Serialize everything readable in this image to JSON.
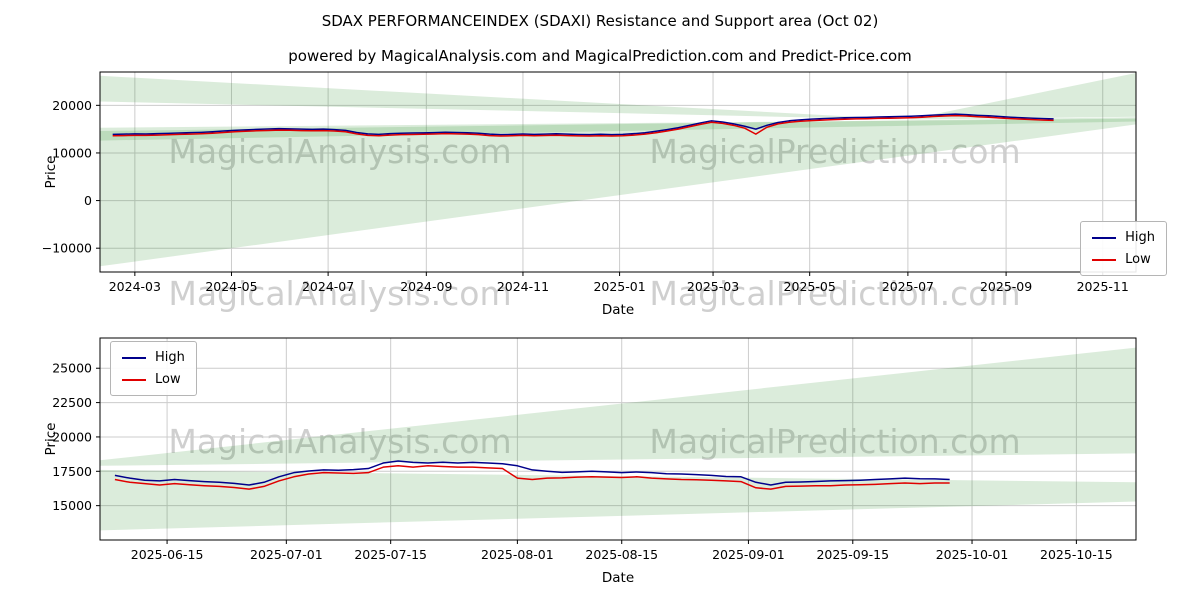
{
  "figure": {
    "title": "SDAX PERFORMANCEINDEX (SDAXI) Resistance and Support area (Oct 02)",
    "subtitle": "powered by MagicalAnalysis.com and MagicalPrediction.com and Predict-Price.com"
  },
  "watermark": {
    "left": "MagicalAnalysis.com",
    "right": "MagicalPrediction.com"
  },
  "colors": {
    "high": "#00008b",
    "low": "#e00000",
    "band": "rgba(34,139,34,0.16)",
    "grid": "#cccccc",
    "frame": "#000000"
  },
  "chart_data": [
    {
      "type": "line",
      "xlabel": "Date",
      "ylabel": "Price",
      "xlim": [
        38,
        692
      ],
      "ylim": [
        -15000,
        27000
      ],
      "x_ticks": {
        "values": [
          60,
          121,
          182,
          244,
          305,
          366,
          425,
          486,
          548,
          610,
          671
        ],
        "labels": [
          "2024-03",
          "2024-05",
          "2024-07",
          "2024-09",
          "2024-11",
          "2025-01",
          "2025-03",
          "2025-05",
          "2025-07",
          "2025-09",
          "2025-11"
        ]
      },
      "y_ticks": {
        "values": [
          -10000,
          0,
          10000,
          20000
        ],
        "labels": [
          "−10000",
          "0",
          "10000",
          "20000"
        ]
      },
      "legend": {
        "position": "lower-right",
        "entries": [
          {
            "label": "High",
            "color": "#00008b"
          },
          {
            "label": "Low",
            "color": "#e00000"
          }
        ]
      },
      "bands": [
        {
          "name": "resistance-wedge-left",
          "points": [
            [
              38,
              26200
            ],
            [
              38,
              20800
            ],
            [
              548,
              17000
            ]
          ]
        },
        {
          "name": "resistance-wedge-right",
          "points": [
            [
              548,
              17000
            ],
            [
              692,
              17600
            ],
            [
              692,
              26800
            ]
          ]
        },
        {
          "name": "support-wedge",
          "points": [
            [
              38,
              15300
            ],
            [
              692,
              17200
            ],
            [
              692,
              16000
            ],
            [
              38,
              -13800
            ]
          ]
        },
        {
          "name": "trend-band",
          "points": [
            [
              38,
              14600
            ],
            [
              692,
              17500
            ],
            [
              692,
              16600
            ],
            [
              38,
              12600
            ]
          ]
        }
      ],
      "series": [
        {
          "name": "High",
          "color": "#00008b",
          "x": [
            46,
            53,
            60,
            67,
            74,
            81,
            88,
            95,
            102,
            109,
            116,
            123,
            130,
            137,
            144,
            151,
            158,
            165,
            172,
            179,
            186,
            193,
            200,
            207,
            214,
            221,
            228,
            235,
            242,
            249,
            256,
            263,
            270,
            277,
            284,
            291,
            298,
            305,
            312,
            319,
            326,
            333,
            340,
            347,
            354,
            361,
            368,
            375,
            382,
            389,
            396,
            403,
            410,
            417,
            424,
            431,
            438,
            445,
            452,
            459,
            466,
            473,
            480,
            487,
            494,
            501,
            508,
            515,
            522,
            529,
            536,
            543,
            550,
            557,
            564,
            571,
            578,
            585,
            592,
            599,
            606,
            613,
            620,
            627,
            634,
            640
          ],
          "y": [
            13900,
            13950,
            14000,
            13980,
            14050,
            14120,
            14200,
            14260,
            14330,
            14450,
            14600,
            14750,
            14850,
            14950,
            15020,
            15100,
            15060,
            15000,
            14950,
            15000,
            14900,
            14750,
            14300,
            14000,
            13900,
            14050,
            14150,
            14180,
            14220,
            14280,
            14350,
            14300,
            14250,
            14150,
            13950,
            13850,
            13900,
            13980,
            13900,
            13960,
            14020,
            13950,
            13880,
            13850,
            13920,
            13860,
            13900,
            14050,
            14250,
            14550,
            14900,
            15300,
            15800,
            16300,
            16750,
            16500,
            16100,
            15600,
            15000,
            15800,
            16400,
            16750,
            16950,
            17100,
            17200,
            17300,
            17380,
            17450,
            17480,
            17550,
            17600,
            17650,
            17700,
            17800,
            17950,
            18050,
            18150,
            18050,
            17900,
            17800,
            17650,
            17500,
            17400,
            17300,
            17200,
            17150
          ]
        },
        {
          "name": "Low",
          "color": "#e00000",
          "x": [
            46,
            53,
            60,
            67,
            74,
            81,
            88,
            95,
            102,
            109,
            116,
            123,
            130,
            137,
            144,
            151,
            158,
            165,
            172,
            179,
            186,
            193,
            200,
            207,
            214,
            221,
            228,
            235,
            242,
            249,
            256,
            263,
            270,
            277,
            284,
            291,
            298,
            305,
            312,
            319,
            326,
            333,
            340,
            347,
            354,
            361,
            368,
            375,
            382,
            389,
            396,
            403,
            410,
            417,
            424,
            431,
            438,
            445,
            452,
            459,
            466,
            473,
            480,
            487,
            494,
            501,
            508,
            515,
            522,
            529,
            536,
            543,
            550,
            557,
            564,
            571,
            578,
            585,
            592,
            599,
            606,
            613,
            620,
            627,
            634,
            640
          ],
          "y": [
            13600,
            13650,
            13700,
            13680,
            13750,
            13820,
            13900,
            13960,
            14030,
            14150,
            14300,
            14450,
            14550,
            14650,
            14720,
            14800,
            14760,
            14700,
            14650,
            14700,
            14600,
            14450,
            14000,
            13700,
            13600,
            13750,
            13850,
            13880,
            13920,
            13980,
            14050,
            14000,
            13950,
            13850,
            13650,
            13550,
            13600,
            13680,
            13600,
            13660,
            13720,
            13650,
            13580,
            13550,
            13620,
            13560,
            13600,
            13750,
            13950,
            14250,
            14600,
            15000,
            15500,
            16000,
            16450,
            16200,
            15800,
            15200,
            13950,
            15400,
            16100,
            16450,
            16650,
            16800,
            16900,
            17000,
            17080,
            17150,
            17180,
            17250,
            17300,
            17350,
            17400,
            17500,
            17650,
            17750,
            17850,
            17750,
            17600,
            17500,
            17350,
            17200,
            17100,
            17000,
            16900,
            16850
          ]
        }
      ]
    },
    {
      "type": "line",
      "xlabel": "Date",
      "ylabel": "Price",
      "xlim": [
        523,
        662
      ],
      "ylim": [
        12500,
        27200
      ],
      "x_ticks": {
        "values": [
          532,
          548,
          562,
          579,
          593,
          610,
          624,
          640,
          654
        ],
        "labels": [
          "2025-06-15",
          "2025-07-01",
          "2025-07-15",
          "2025-08-01",
          "2025-08-15",
          "2025-09-01",
          "2025-09-15",
          "2025-10-01",
          "2025-10-15"
        ]
      },
      "y_ticks": {
        "values": [
          15000,
          17500,
          20000,
          22500,
          25000
        ],
        "labels": [
          "15000",
          "17500",
          "20000",
          "22500",
          "25000"
        ]
      },
      "legend": {
        "position": "upper-left",
        "entries": [
          {
            "label": "High",
            "color": "#00008b"
          },
          {
            "label": "Low",
            "color": "#e00000"
          }
        ]
      },
      "bands": [
        {
          "name": "resistance-wedge",
          "points": [
            [
              523,
              18300
            ],
            [
              662,
              26500
            ],
            [
              662,
              18800
            ],
            [
              523,
              17900
            ]
          ]
        },
        {
          "name": "support-band",
          "points": [
            [
              523,
              17600
            ],
            [
              662,
              16700
            ],
            [
              662,
              15300
            ],
            [
              523,
              13200
            ]
          ]
        }
      ],
      "series": [
        {
          "name": "High",
          "color": "#00008b",
          "x": [
            525,
            527,
            529,
            531,
            533,
            535,
            537,
            539,
            541,
            543,
            545,
            547,
            549,
            551,
            553,
            555,
            557,
            559,
            561,
            563,
            565,
            567,
            569,
            571,
            573,
            575,
            577,
            579,
            581,
            583,
            585,
            587,
            589,
            591,
            593,
            595,
            597,
            599,
            601,
            603,
            605,
            607,
            609,
            611,
            613,
            615,
            617,
            619,
            621,
            623,
            625,
            627,
            629,
            631,
            633,
            635,
            637
          ],
          "y": [
            17200,
            17000,
            16850,
            16800,
            16900,
            16820,
            16750,
            16700,
            16620,
            16500,
            16700,
            17100,
            17400,
            17520,
            17600,
            17580,
            17620,
            17700,
            18100,
            18250,
            18150,
            18100,
            18160,
            18100,
            18150,
            18100,
            18050,
            17900,
            17600,
            17500,
            17420,
            17460,
            17500,
            17460,
            17400,
            17450,
            17400,
            17320,
            17300,
            17260,
            17200,
            17120,
            17100,
            16700,
            16500,
            16700,
            16720,
            16760,
            16800,
            16820,
            16850,
            16900,
            16950,
            17000,
            16960,
            16950,
            16900
          ]
        },
        {
          "name": "Low",
          "color": "#e00000",
          "x": [
            525,
            527,
            529,
            531,
            533,
            535,
            537,
            539,
            541,
            543,
            545,
            547,
            549,
            551,
            553,
            555,
            557,
            559,
            561,
            563,
            565,
            567,
            569,
            571,
            573,
            575,
            577,
            579,
            581,
            583,
            585,
            587,
            589,
            591,
            593,
            595,
            597,
            599,
            601,
            603,
            605,
            607,
            609,
            611,
            613,
            615,
            617,
            619,
            621,
            623,
            625,
            627,
            629,
            631,
            633,
            635,
            637
          ],
          "y": [
            16900,
            16700,
            16600,
            16500,
            16600,
            16520,
            16450,
            16400,
            16320,
            16200,
            16400,
            16800,
            17100,
            17300,
            17400,
            17380,
            17350,
            17400,
            17800,
            17900,
            17800,
            17900,
            17850,
            17800,
            17800,
            17750,
            17700,
            17000,
            16900,
            17000,
            17020,
            17080,
            17100,
            17080,
            17050,
            17100,
            17000,
            16950,
            16900,
            16880,
            16850,
            16800,
            16750,
            16300,
            16200,
            16400,
            16420,
            16450,
            16450,
            16500,
            16520,
            16550,
            16600,
            16650,
            16600,
            16650,
            16650
          ]
        }
      ]
    }
  ]
}
